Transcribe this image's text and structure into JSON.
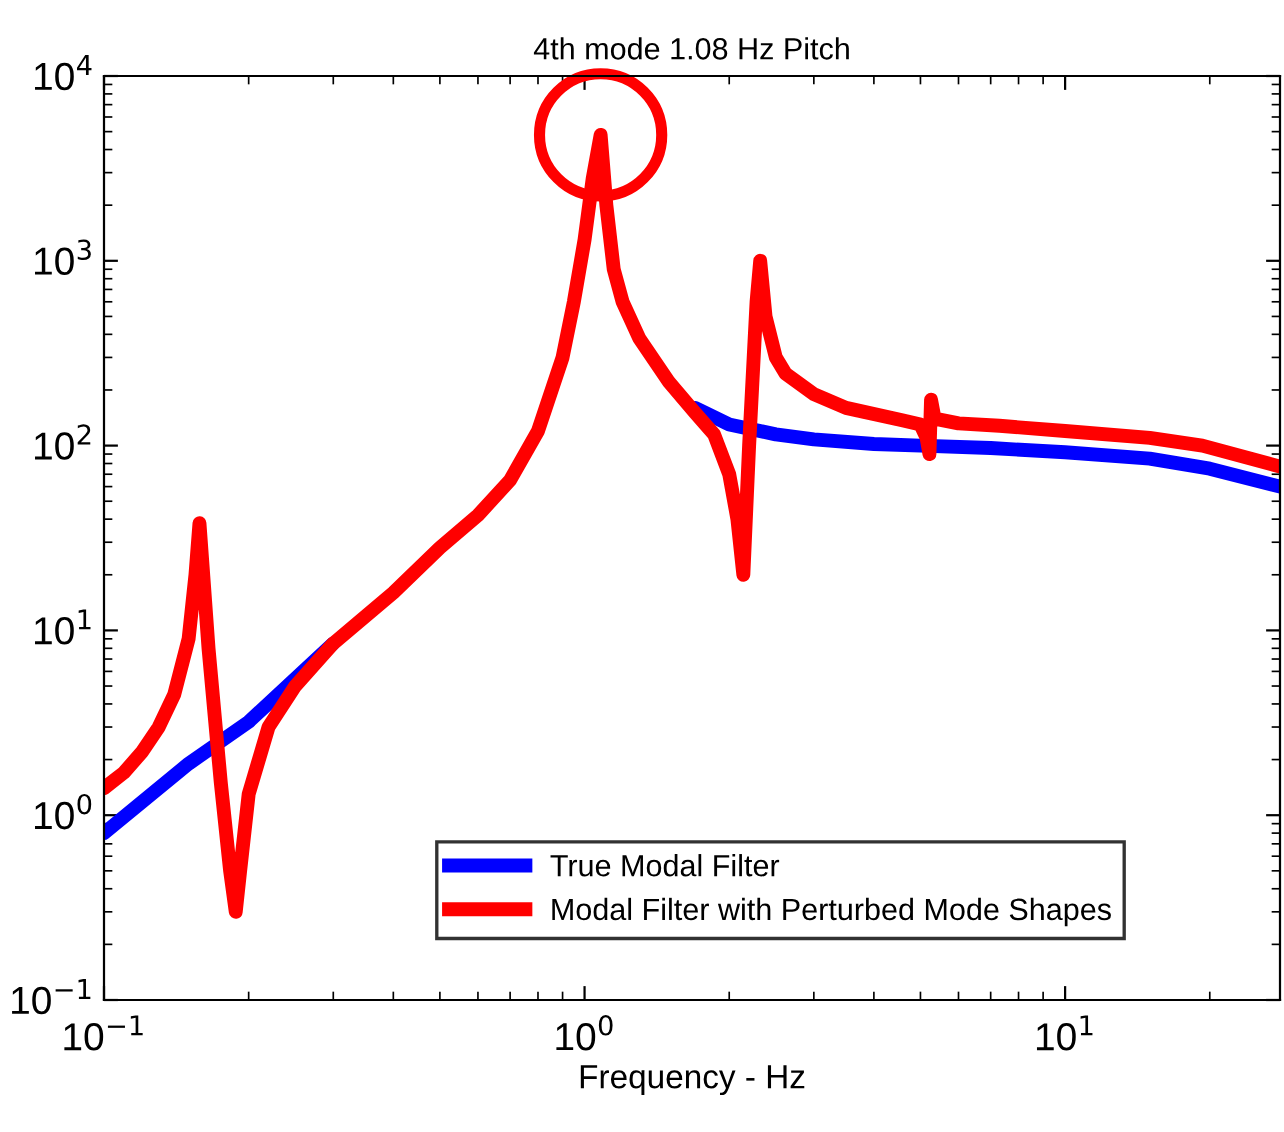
{
  "chart_data": {
    "type": "line",
    "title": "4th mode 1.08 Hz Pitch",
    "xlabel": "Frequency - Hz",
    "log": "xy",
    "xlim": [
      0.1,
      28
    ],
    "ylim": [
      0.1,
      10000
    ],
    "xticks": [
      {
        "value": 0.1,
        "label": "10$^{−1}$"
      },
      {
        "value": 1,
        "label": "10$^{0}$"
      },
      {
        "value": 10,
        "label": "10$^{1}$"
      }
    ],
    "yticks": [
      {
        "value": 0.1,
        "label": "10$^{−1}$"
      },
      {
        "value": 1,
        "label": "10$^{0}$"
      },
      {
        "value": 10,
        "label": "10$^{1}$"
      },
      {
        "value": 100,
        "label": "10$^{2}$"
      },
      {
        "value": 1000,
        "label": "10$^{3}$"
      },
      {
        "value": 10000,
        "label": "10$^{4}$"
      }
    ],
    "grid": false,
    "legend": "bottom right",
    "line_style": "solid",
    "marker": "none",
    "series": [
      {
        "name": "True Modal Filter",
        "color": "#0000ff",
        "x": [
          0.1,
          0.15,
          0.2,
          0.3,
          0.4,
          0.5,
          0.6,
          0.7,
          0.8,
          0.9,
          0.95,
          1.0,
          1.04,
          1.08,
          1.11,
          1.15,
          1.2,
          1.3,
          1.5,
          1.7,
          2.0,
          2.5,
          3,
          4,
          5,
          7,
          10,
          15,
          20,
          28
        ],
        "values": [
          0.8,
          1.9,
          3.2,
          8.5,
          null,
          null,
          null,
          null,
          null,
          null,
          null,
          null,
          null,
          null,
          null,
          null,
          null,
          null,
          null,
          160,
          130,
          115,
          108,
          102,
          100,
          97,
          92,
          85,
          75,
          60
        ]
      },
      {
        "name": "Modal Filter with Perturbed Mode Shapes",
        "color": "#ff0000",
        "x": [
          0.1,
          0.11,
          0.12,
          0.13,
          0.14,
          0.15,
          0.155,
          0.158,
          0.165,
          0.175,
          0.183,
          0.188,
          0.192,
          0.2,
          0.22,
          0.25,
          0.3,
          0.4,
          0.5,
          0.6,
          0.7,
          0.8,
          0.9,
          0.95,
          1.0,
          1.04,
          1.08,
          1.11,
          1.15,
          1.2,
          1.3,
          1.5,
          1.7,
          1.86,
          2.0,
          2.08,
          2.14,
          2.2,
          2.28,
          2.32,
          2.38,
          2.5,
          2.62,
          3,
          3.5,
          4.58,
          5.0,
          5.15,
          5.22,
          5.26,
          5.35,
          6,
          7.3,
          10,
          15,
          19.3,
          28
        ],
        "values": [
          1.4,
          1.7,
          2.2,
          3.0,
          4.5,
          9,
          20,
          38,
          8,
          1.5,
          0.5,
          0.3,
          0.5,
          1.3,
          3,
          5,
          8.5,
          16,
          28,
          42,
          65,
          120,
          300,
          600,
          1300,
          2800,
          4800,
          2000,
          900,
          600,
          380,
          220,
          150,
          115,
          70,
          40,
          20,
          100,
          600,
          1000,
          500,
          300,
          245,
          190,
          160,
          137,
          130,
          110,
          90,
          177,
          140,
          132,
          128,
          120,
          110,
          100,
          77
        ]
      }
    ]
  }
}
